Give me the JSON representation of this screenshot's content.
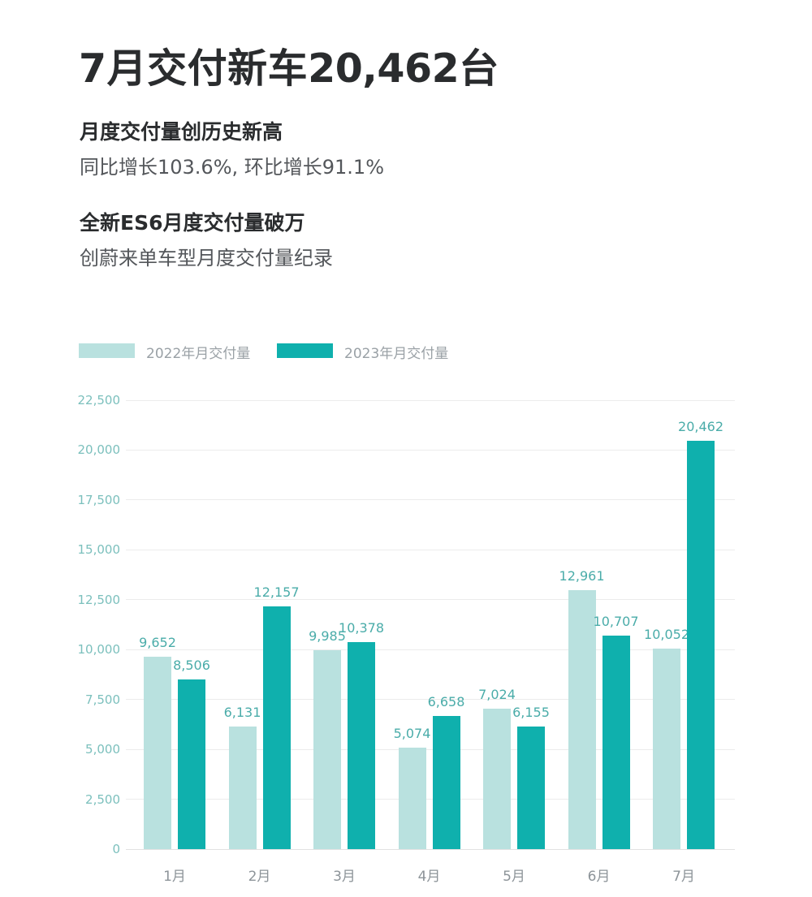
{
  "title": {
    "prefix": "7月交付新车",
    "number": "20,462",
    "suffix": "台"
  },
  "highlights": [
    {
      "heading": "月度交付量创历史新高",
      "body": "同比增长103.6%, 环比增长91.1%"
    },
    {
      "heading": "全新ES6月度交付量破万",
      "body": "创蔚来单车型月度交付量纪录"
    }
  ],
  "legend": {
    "items": [
      {
        "label": "2022年月交付量",
        "color": "#b9e1df"
      },
      {
        "label": "2023年月交付量",
        "color": "#0fb0ad"
      }
    ]
  },
  "chart_data": {
    "type": "bar",
    "title": "",
    "categories": [
      "1月",
      "2月",
      "3月",
      "4月",
      "5月",
      "6月",
      "7月"
    ],
    "series": [
      {
        "name": "2022年月交付量",
        "color": "#b9e1df",
        "values": [
          9652,
          6131,
          9985,
          5074,
          7024,
          12961,
          10052
        ]
      },
      {
        "name": "2023年月交付量",
        "color": "#0fb0ad",
        "values": [
          8506,
          12157,
          10378,
          6658,
          6155,
          10707,
          20462
        ]
      }
    ],
    "value_labels": [
      "9,652",
      "6,131",
      "9,985",
      "5,074",
      "7,024",
      "12,961",
      "10,052",
      "8,506",
      "12,157",
      "10,378",
      "6,658",
      "6,155",
      "10,707",
      "20,462"
    ],
    "ylim": [
      0,
      22500
    ],
    "y_ticks": [
      0,
      2500,
      5000,
      7500,
      10000,
      12500,
      15000,
      17500,
      20000,
      22500
    ],
    "y_tick_labels": [
      "0",
      "2,500",
      "5,000",
      "7,500",
      "10,000",
      "12,500",
      "15,000",
      "17,500",
      "20,000",
      "22,500"
    ],
    "grid": true,
    "legend_position": "top",
    "colors": {
      "bar_2022": "#b9e1df",
      "bar_2023": "#0fb0ad",
      "value_label": "#4aaca9",
      "y_tick_label": "#7cc0bd",
      "x_axis_label": "#8d9499",
      "gridline": "#ececec"
    }
  }
}
